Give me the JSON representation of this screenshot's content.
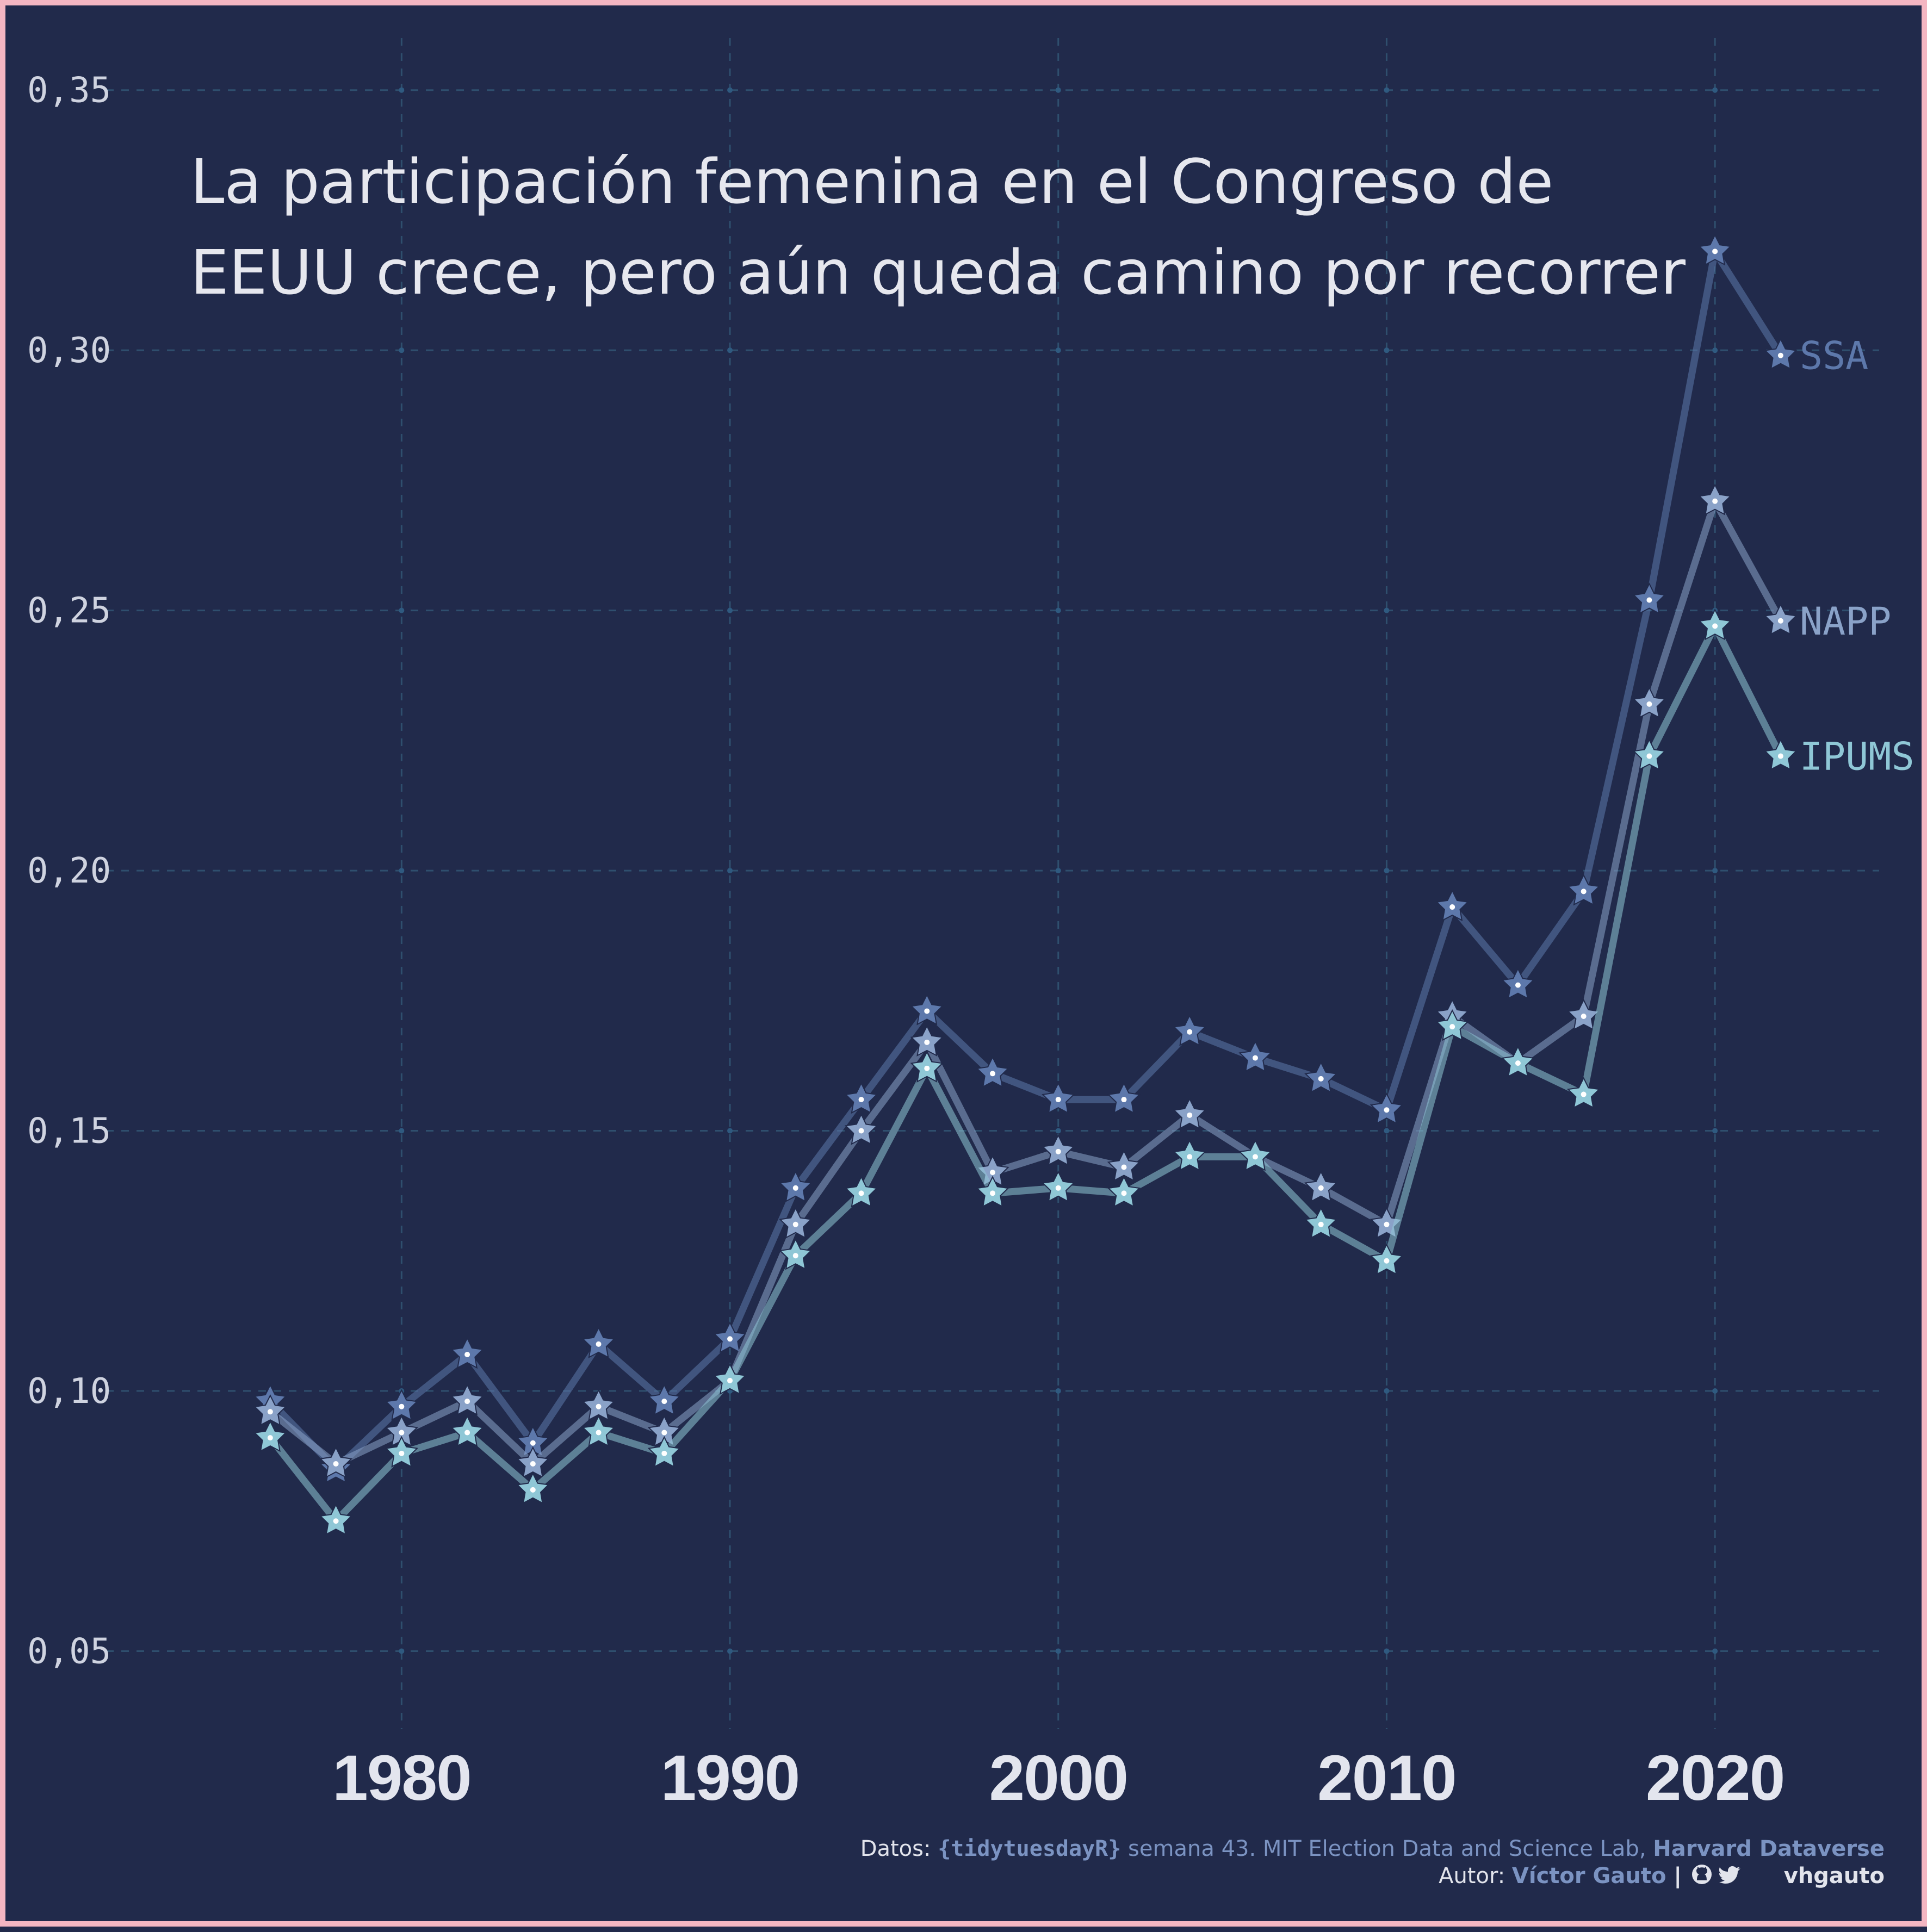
{
  "title_lines": [
    "La participación femenina en el Congreso de",
    "EEUU crece, pero aún queda camino por recorrer"
  ],
  "caption": {
    "line1_prefix": "Datos: ",
    "line1_pkg": "{tidytuesdayR}",
    "line1_middle": " semana 43. MIT Election Data and Science Lab, ",
    "line1_source": "Harvard Dataverse",
    "line2_prefix": "Autor: ",
    "line2_author": "Víctor Gauto",
    "line2_sep": " | ",
    "line2_handle": "vhgauto",
    "icons": [
      "github-icon",
      "twitter-icon"
    ]
  },
  "colors": {
    "background": "#212a4b",
    "border": "#f4b6c2",
    "grid": "#2f4f6e",
    "SSA": "#5d78ab",
    "NAPP": "#8aa2c8",
    "IPUMS": "#8fc7d6"
  },
  "chart_data": {
    "type": "line",
    "title": "La participación femenina en el Congreso de EEUU crece, pero aún queda camino por recorrer",
    "xlabel": "",
    "ylabel": "",
    "x": [
      1976,
      1978,
      1980,
      1982,
      1984,
      1986,
      1988,
      1990,
      1992,
      1994,
      1996,
      1998,
      2000,
      2002,
      2004,
      2006,
      2008,
      2010,
      2012,
      2014,
      2016,
      2018,
      2020,
      2022
    ],
    "xlim": [
      1971,
      2025
    ],
    "ylim": [
      0.035,
      0.36
    ],
    "x_ticks": [
      1980,
      1990,
      2000,
      2010,
      2020
    ],
    "x_tick_labels": [
      "1980",
      "1990",
      "2000",
      "2010",
      "2020"
    ],
    "y_ticks": [
      0.05,
      0.1,
      0.15,
      0.2,
      0.25,
      0.3,
      0.35
    ],
    "y_tick_labels": [
      "0,05",
      "0,10",
      "0,15",
      "0,20",
      "0,25",
      "0,30",
      "0,35"
    ],
    "grid": true,
    "legend": "direct labels at line ends",
    "marker": "star",
    "series": [
      {
        "name": "SSA",
        "values": [
          0.098,
          0.085,
          0.097,
          0.107,
          0.09,
          0.109,
          0.098,
          0.11,
          0.139,
          0.156,
          0.173,
          0.161,
          0.156,
          0.156,
          0.169,
          0.164,
          0.16,
          0.154,
          0.193,
          0.178,
          0.196,
          0.252,
          0.319,
          0.299
        ]
      },
      {
        "name": "NAPP",
        "values": [
          0.096,
          0.086,
          0.092,
          0.098,
          0.086,
          0.097,
          0.092,
          0.102,
          0.132,
          0.15,
          0.167,
          0.142,
          0.146,
          0.143,
          0.153,
          0.145,
          0.139,
          0.132,
          0.172,
          0.163,
          0.172,
          0.232,
          0.271,
          0.248
        ]
      },
      {
        "name": "IPUMS",
        "values": [
          0.091,
          0.075,
          0.088,
          0.092,
          0.081,
          0.092,
          0.088,
          0.102,
          0.126,
          0.138,
          0.162,
          0.138,
          0.139,
          0.138,
          0.145,
          0.145,
          0.132,
          0.125,
          0.17,
          0.163,
          0.157,
          0.222,
          0.247,
          0.222
        ]
      }
    ]
  }
}
